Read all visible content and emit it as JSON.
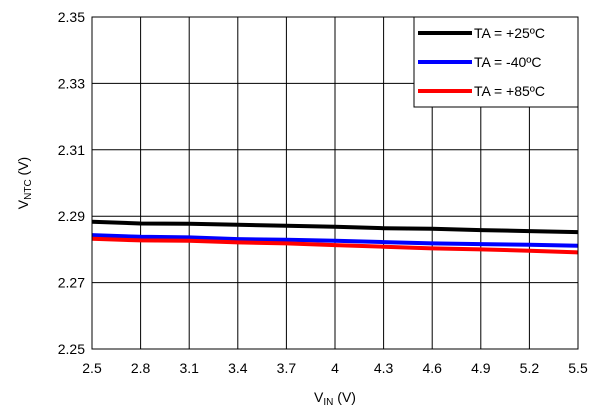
{
  "chart_data": {
    "type": "line",
    "title": "",
    "xlabel": {
      "main": "V",
      "sub": "IN",
      "unit": " (V)"
    },
    "ylabel": {
      "main": "V",
      "sub": "NTC",
      "unit": " (V)"
    },
    "xlim": [
      2.5,
      5.5
    ],
    "ylim": [
      2.25,
      2.35
    ],
    "xticks": [
      "2.5",
      "2.8",
      "3.1",
      "3.4",
      "3.7",
      "4",
      "4.3",
      "4.6",
      "4.9",
      "5.2",
      "5.5"
    ],
    "yticks": [
      "2.25",
      "2.27",
      "2.29",
      "2.31",
      "2.33",
      "2.35"
    ],
    "grid": true,
    "legend_position": "top-right",
    "x": [
      2.5,
      2.8,
      3.1,
      3.4,
      3.7,
      4.0,
      4.3,
      4.6,
      4.9,
      5.2,
      5.5
    ],
    "series": [
      {
        "name": "TA = +25ºC",
        "color": "#000000",
        "values": [
          2.2883,
          2.2878,
          2.2877,
          2.2874,
          2.2871,
          2.2868,
          2.2864,
          2.2862,
          2.2858,
          2.2855,
          2.2852
        ]
      },
      {
        "name": "TA = -40ºC",
        "color": "#0000ff",
        "values": [
          2.2843,
          2.2838,
          2.2836,
          2.2831,
          2.2829,
          2.2826,
          2.2822,
          2.2818,
          2.2816,
          2.2814,
          2.2811
        ]
      },
      {
        "name": "TA = +85ºC",
        "color": "#ff0000",
        "values": [
          2.2832,
          2.2827,
          2.2826,
          2.2821,
          2.2818,
          2.2813,
          2.2808,
          2.2803,
          2.28,
          2.2796,
          2.2791
        ]
      }
    ]
  }
}
